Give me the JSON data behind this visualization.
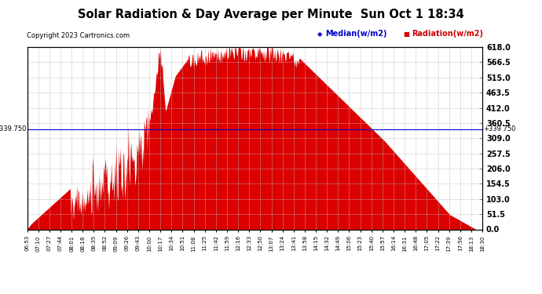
{
  "title": "Solar Radiation & Day Average per Minute  Sun Oct 1 18:34",
  "copyright": "Copyright 2023 Cartronics.com",
  "median_label": "Median(w/m2)",
  "radiation_label": "Radiation(w/m2)",
  "median_value": 339.75,
  "ymin": 0.0,
  "ymax": 618.0,
  "yticks": [
    0.0,
    51.5,
    103.0,
    154.5,
    206.0,
    257.5,
    309.0,
    360.5,
    412.0,
    463.5,
    515.0,
    566.5,
    618.0
  ],
  "bg_color": "#ffffff",
  "fill_color": "#dd0000",
  "median_color": "#0000cc",
  "grid_color": "#bbbbbb",
  "tick_labels": [
    "06:53",
    "07:10",
    "07:27",
    "07:44",
    "08:01",
    "08:18",
    "08:35",
    "08:52",
    "09:09",
    "09:26",
    "09:43",
    "10:00",
    "10:17",
    "10:34",
    "10:51",
    "11:08",
    "11:25",
    "11:42",
    "11:59",
    "12:16",
    "12:33",
    "12:50",
    "13:07",
    "13:24",
    "13:41",
    "13:58",
    "14:15",
    "14:32",
    "14:49",
    "15:06",
    "15:23",
    "15:40",
    "15:57",
    "16:14",
    "16:31",
    "16:48",
    "17:05",
    "17:22",
    "17:39",
    "17:56",
    "18:13",
    "18:30"
  ]
}
